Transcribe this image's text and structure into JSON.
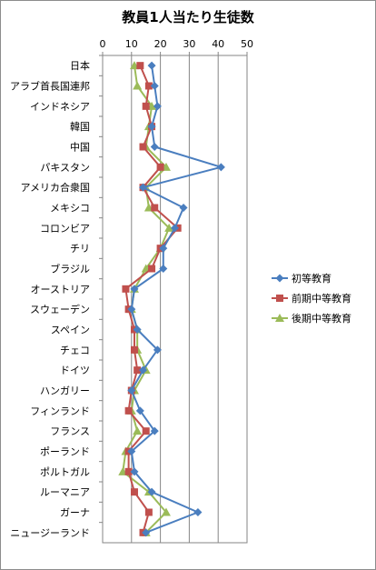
{
  "chart_data": {
    "type": "line",
    "orientation": "horizontal",
    "title": "教員1人当たり生徒数",
    "xlim": [
      0,
      50
    ],
    "x_ticks": [
      0,
      10,
      20,
      30,
      40,
      50
    ],
    "grid": true,
    "legend_position": "right",
    "categories": [
      "日本",
      "アラブ首長国連邦",
      "インドネシア",
      "韓国",
      "中国",
      "パキスタン",
      "アメリカ合衆国",
      "メキシコ",
      "コロンビア",
      "チリ",
      "ブラジル",
      "オーストリア",
      "スウェーデン",
      "スペイン",
      "チェコ",
      "ドイツ",
      "ハンガリー",
      "フィンランド",
      "フランス",
      "ポーランド",
      "ポルトガル",
      "ルーマニア",
      "ガーナ",
      "ニュージーランド"
    ],
    "series": [
      {
        "name": "初等教育",
        "color": "#4a7ebf",
        "marker": "diamond",
        "values": [
          17,
          18,
          19,
          17,
          18,
          41,
          14,
          28,
          25,
          21,
          21,
          11,
          10,
          12,
          19,
          14,
          10,
          13,
          18,
          10,
          11,
          17,
          33,
          15
        ]
      },
      {
        "name": "前期中等教育",
        "color": "#c0504d",
        "marker": "square",
        "values": [
          13,
          16,
          15,
          17,
          14,
          20,
          14,
          18,
          26,
          20,
          17,
          8,
          9,
          11,
          11,
          12,
          10,
          9,
          15,
          9,
          9,
          11,
          16,
          14
        ]
      },
      {
        "name": "後期中等教育",
        "color": "#9bbb59",
        "marker": "triangle",
        "values": [
          11,
          12,
          17,
          16,
          15,
          22,
          15,
          16,
          23,
          20,
          15,
          11,
          10,
          12,
          12,
          15,
          11,
          10,
          12,
          8,
          7,
          16,
          22,
          15
        ]
      }
    ]
  }
}
